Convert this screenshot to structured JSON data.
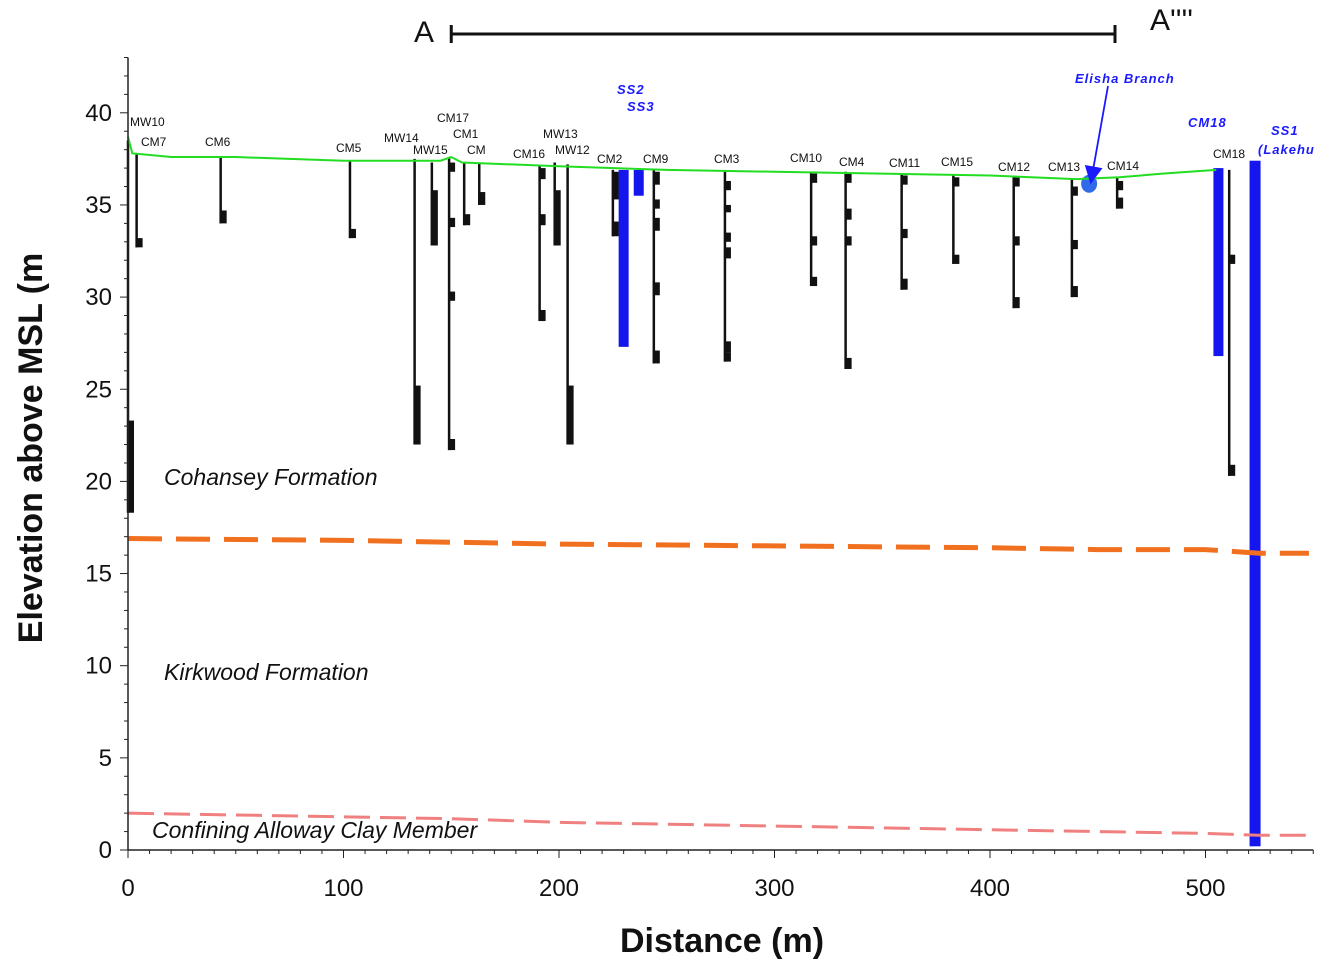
{
  "chart_data": {
    "type": "cross-section",
    "xlabel": "Distance (m)",
    "ylabel": "Elevation above MSL (m",
    "xlim": [
      0,
      550
    ],
    "ylim": [
      0,
      43
    ],
    "xticks": [
      0,
      100,
      200,
      300,
      400,
      500
    ],
    "yticks": [
      0,
      5,
      10,
      15,
      20,
      25,
      30,
      35,
      40
    ],
    "section": {
      "start_label": "A",
      "end_label": "A''''",
      "x_start": 150,
      "x_end": 458
    },
    "ground_surface": [
      [
        0,
        38.7
      ],
      [
        2,
        37.8
      ],
      [
        20,
        37.6
      ],
      [
        50,
        37.6
      ],
      [
        100,
        37.4
      ],
      [
        145,
        37.4
      ],
      [
        150,
        37.6
      ],
      [
        155,
        37.3
      ],
      [
        200,
        37.1
      ],
      [
        250,
        36.9
      ],
      [
        300,
        36.8
      ],
      [
        350,
        36.7
      ],
      [
        400,
        36.6
      ],
      [
        440,
        36.4
      ],
      [
        460,
        36.5
      ],
      [
        480,
        36.7
      ],
      [
        505,
        36.9
      ]
    ],
    "formation_boundaries": [
      {
        "name": "Cohansey-Kirkwood contact",
        "color": "#f07020",
        "points": [
          [
            0,
            16.9
          ],
          [
            100,
            16.8
          ],
          [
            200,
            16.6
          ],
          [
            300,
            16.5
          ],
          [
            400,
            16.4
          ],
          [
            450,
            16.3
          ],
          [
            500,
            16.3
          ],
          [
            525,
            16.1
          ],
          [
            548,
            16.1
          ]
        ]
      },
      {
        "name": "Kirkwood-Alloway contact",
        "color": "#f08080",
        "points": [
          [
            0,
            2.0
          ],
          [
            50,
            1.9
          ],
          [
            100,
            1.8
          ],
          [
            150,
            1.7
          ],
          [
            200,
            1.5
          ],
          [
            250,
            1.4
          ],
          [
            300,
            1.3
          ],
          [
            350,
            1.2
          ],
          [
            400,
            1.1
          ],
          [
            450,
            1.0
          ],
          [
            500,
            0.9
          ],
          [
            525,
            0.8
          ],
          [
            548,
            0.8
          ]
        ]
      }
    ],
    "formations": [
      "Cohansey Formation",
      "Kirkwood Formation",
      "Confining Alloway Clay Member"
    ],
    "wells": [
      {
        "name": "MW10",
        "x": 0,
        "top": 38.5,
        "bottom": 18.3,
        "screens": [
          [
            23.3,
            18.3
          ]
        ]
      },
      {
        "name": "CM7",
        "x": 4,
        "top": 37.8,
        "bottom": 32.7,
        "screens": [
          [
            33.2,
            32.7
          ]
        ]
      },
      {
        "name": "CM6",
        "x": 43,
        "top": 37.6,
        "bottom": 34.0,
        "screens": [
          [
            34.7,
            34.0
          ]
        ]
      },
      {
        "name": "CM5",
        "x": 103,
        "top": 37.4,
        "bottom": 33.2,
        "screens": [
          [
            33.7,
            33.2
          ]
        ]
      },
      {
        "name": "MW14",
        "x": 133,
        "top": 37.5,
        "bottom": 22.0,
        "screens": [
          [
            25.2,
            22.0
          ]
        ]
      },
      {
        "name": "MW15",
        "x": 141,
        "top": 37.3,
        "bottom": 32.8,
        "screens": [
          [
            35.8,
            32.8
          ]
        ]
      },
      {
        "name": "CM17",
        "x": 149,
        "top": 37.6,
        "bottom": 21.7,
        "screens": [
          [
            37.3,
            36.8
          ],
          [
            34.3,
            33.8
          ],
          [
            30.3,
            29.8
          ],
          [
            22.3,
            21.7
          ]
        ]
      },
      {
        "name": "CM1",
        "x": 156,
        "top": 37.3,
        "bottom": 33.9,
        "screens": [
          [
            34.5,
            33.9
          ]
        ]
      },
      {
        "name": "CM",
        "x": 163,
        "top": 37.3,
        "bottom": 35.0,
        "screens": [
          [
            35.7,
            35.0
          ]
        ]
      },
      {
        "name": "CM16",
        "x": 191,
        "top": 37.1,
        "bottom": 28.7,
        "screens": [
          [
            37.0,
            36.4
          ],
          [
            34.5,
            33.9
          ],
          [
            29.3,
            28.7
          ]
        ]
      },
      {
        "name": "MW13",
        "x": 198,
        "top": 37.3,
        "bottom": 32.8,
        "screens": [
          [
            35.8,
            32.8
          ]
        ]
      },
      {
        "name": "MW12",
        "x": 204,
        "top": 37.2,
        "bottom": 22.0,
        "screens": [
          [
            25.2,
            22.0
          ]
        ]
      },
      {
        "name": "CM2",
        "x": 225,
        "top": 36.9,
        "bottom": 33.3,
        "screens": [
          [
            36.8,
            35.3
          ],
          [
            34.1,
            33.3
          ]
        ]
      },
      {
        "name": "CM9",
        "x": 244,
        "top": 36.9,
        "bottom": 26.4,
        "screens": [
          [
            36.8,
            36.1
          ],
          [
            35.3,
            34.8
          ],
          [
            34.3,
            33.6
          ],
          [
            30.8,
            30.1
          ],
          [
            27.1,
            26.4
          ]
        ]
      },
      {
        "name": "CM3",
        "x": 277,
        "top": 36.8,
        "bottom": 26.5,
        "screens": [
          [
            36.3,
            35.8
          ],
          [
            35.0,
            34.6
          ],
          [
            33.5,
            33.0
          ],
          [
            32.7,
            32.1
          ],
          [
            27.6,
            27.0
          ],
          [
            27.0,
            26.5
          ]
        ]
      },
      {
        "name": "CM10",
        "x": 317,
        "top": 36.8,
        "bottom": 30.6,
        "screens": [
          [
            36.7,
            36.2
          ],
          [
            33.3,
            32.8
          ],
          [
            31.1,
            30.6
          ]
        ]
      },
      {
        "name": "CM4",
        "x": 333,
        "top": 36.8,
        "bottom": 26.1,
        "screens": [
          [
            36.7,
            36.2
          ],
          [
            34.8,
            34.2
          ],
          [
            33.3,
            32.8
          ],
          [
            26.7,
            26.1
          ]
        ]
      },
      {
        "name": "CM11",
        "x": 359,
        "top": 36.7,
        "bottom": 30.4,
        "screens": [
          [
            36.6,
            36.1
          ],
          [
            33.7,
            33.2
          ],
          [
            31.0,
            30.4
          ]
        ]
      },
      {
        "name": "CM15",
        "x": 383,
        "top": 36.6,
        "bottom": 31.8,
        "screens": [
          [
            36.5,
            36.0
          ],
          [
            32.3,
            31.8
          ]
        ]
      },
      {
        "name": "CM12",
        "x": 411,
        "top": 36.6,
        "bottom": 29.4,
        "screens": [
          [
            36.5,
            36.0
          ],
          [
            33.3,
            32.8
          ],
          [
            30.0,
            29.4
          ]
        ]
      },
      {
        "name": "CM13",
        "x": 438,
        "top": 36.4,
        "bottom": 30.0,
        "screens": [
          [
            36.0,
            35.5
          ],
          [
            33.1,
            32.6
          ],
          [
            30.6,
            30.0
          ]
        ]
      },
      {
        "name": "CM14",
        "x": 459,
        "top": 36.5,
        "bottom": 34.8,
        "screens": [
          [
            36.3,
            35.8
          ],
          [
            35.4,
            34.8
          ]
        ]
      },
      {
        "name": "CM18",
        "x": 511,
        "top": 36.9,
        "bottom": 20.3,
        "screens": [
          [
            32.3,
            31.8
          ],
          [
            20.9,
            20.3
          ]
        ]
      }
    ],
    "blue_wells": [
      {
        "name": "SS2",
        "x": 230,
        "top": 36.9,
        "bottom": 27.3
      },
      {
        "name": "SS3",
        "x": 237,
        "top": 36.9,
        "bottom": 35.5
      },
      {
        "name": "CM18",
        "x": 506,
        "top": 37.0,
        "bottom": 26.8
      },
      {
        "name": "SS1 (Lakehu",
        "x": 523,
        "top": 37.4,
        "bottom": 0.2
      }
    ],
    "annotations": [
      {
        "text": "Elisha Branch",
        "target_x": 446,
        "target_y": 36.1
      }
    ],
    "grid": false
  }
}
